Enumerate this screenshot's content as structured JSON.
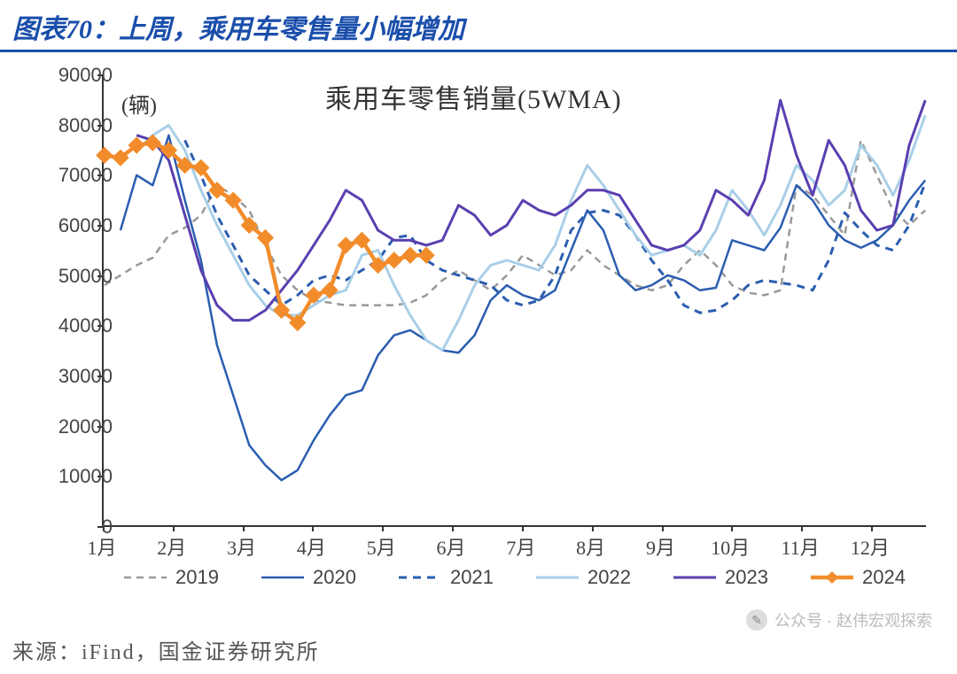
{
  "title": "图表70：上周，乘用车零售量小幅增加",
  "source": "来源：iFind，国金证券研究所",
  "watermark": "公众号 · 赵伟宏观探索",
  "chart": {
    "type": "line",
    "unit_label": "(辆)",
    "inner_title": "乘用车零售销量(5WMA)",
    "background_color": "#ffffff",
    "axis_color": "#333333",
    "ylim": [
      0,
      90000
    ],
    "ytick_step": 10000,
    "yticks": [
      0,
      10000,
      20000,
      30000,
      40000,
      50000,
      60000,
      70000,
      80000,
      90000
    ],
    "xlabels": [
      "1月",
      "2月",
      "3月",
      "4月",
      "5月",
      "6月",
      "7月",
      "8月",
      "9月",
      "10月",
      "11月",
      "12月"
    ],
    "points_per_month_labeling": 4,
    "label_fontsize": 22,
    "title_fontsize": 30,
    "title_color": "#1a4eab",
    "series": [
      {
        "name": "2019",
        "color": "#999999",
        "dash": "8,6",
        "width": 2.5,
        "marker": "none",
        "values": [
          48000,
          50000,
          52000,
          53500,
          58000,
          59500,
          62000,
          68000,
          66000,
          63000,
          56000,
          50000,
          47000,
          45000,
          44500,
          44000,
          44000,
          44000,
          44000,
          44500,
          46000,
          49000,
          51000,
          49000,
          47000,
          50000,
          54000,
          52000,
          50000,
          51000,
          55000,
          52000,
          50000,
          48000,
          47000,
          48000,
          52000,
          55000,
          52000,
          48000,
          46500,
          46000,
          47000,
          68000,
          66000,
          62000,
          58000,
          77000,
          70000,
          63000,
          60000,
          63000
        ]
      },
      {
        "name": "2020",
        "color": "#2b5db0",
        "dash": "none",
        "width": 2.5,
        "marker": "none",
        "values": [
          null,
          59000,
          70000,
          68000,
          78000,
          65000,
          53000,
          36000,
          26000,
          16000,
          12000,
          9000,
          11000,
          17000,
          22000,
          26000,
          27000,
          34000,
          38000,
          39000,
          37000,
          35000,
          34500,
          38000,
          45000,
          48000,
          46000,
          45000,
          47000,
          55000,
          63000,
          59000,
          50000,
          47000,
          48000,
          50000,
          49000,
          47000,
          47500,
          57000,
          56000,
          55000,
          59500,
          68000,
          65000,
          60000,
          57000,
          55500,
          57000,
          60000,
          65000,
          69000
        ]
      },
      {
        "name": "2021",
        "color": "#2b5db0",
        "dash": "9,7",
        "width": 3,
        "marker": "none",
        "values": [
          null,
          null,
          null,
          null,
          null,
          77000,
          70000,
          62000,
          56000,
          50000,
          47000,
          44000,
          46000,
          49000,
          50000,
          49000,
          51000,
          53000,
          57500,
          58000,
          53000,
          51000,
          50000,
          49000,
          48000,
          45000,
          44000,
          45000,
          50000,
          59000,
          62500,
          63000,
          62000,
          58000,
          53000,
          49000,
          44000,
          42500,
          43000,
          45000,
          48000,
          49000,
          48500,
          48000,
          47000,
          53000,
          62500,
          59000,
          56000,
          55000,
          60000,
          68500
        ]
      },
      {
        "name": "2022",
        "color": "#a9cfe8",
        "dash": "none",
        "width": 3,
        "marker": "none",
        "values": [
          null,
          null,
          75000,
          78000,
          80000,
          75000,
          67000,
          60000,
          54000,
          48000,
          44000,
          42000,
          42000,
          44000,
          46000,
          47000,
          54000,
          55000,
          48000,
          42000,
          37000,
          35000,
          41000,
          48000,
          52000,
          53000,
          52000,
          51000,
          56000,
          65000,
          72000,
          68000,
          63000,
          58000,
          54000,
          55000,
          56000,
          54000,
          59000,
          67000,
          63000,
          58000,
          64000,
          72000,
          69000,
          64000,
          67000,
          76000,
          72000,
          66000,
          73000,
          82000
        ]
      },
      {
        "name": "2023",
        "color": "#5a3fb0",
        "dash": "none",
        "width": 3,
        "marker": "none",
        "values": [
          null,
          null,
          78000,
          77000,
          73000,
          62000,
          51000,
          44000,
          41000,
          41000,
          43000,
          47000,
          51000,
          56000,
          61000,
          67000,
          65000,
          59000,
          57000,
          57000,
          56000,
          57000,
          64000,
          62000,
          58000,
          60000,
          65000,
          63000,
          62000,
          64000,
          67000,
          67000,
          66000,
          61000,
          56000,
          55000,
          56000,
          59000,
          67000,
          65000,
          62000,
          69000,
          85000,
          74000,
          66000,
          77000,
          72000,
          63000,
          59000,
          60000,
          76000,
          85000
        ]
      },
      {
        "name": "2024",
        "color": "#f28c2b",
        "dash": "none",
        "width": 4.5,
        "marker": "diamond",
        "marker_size": 9,
        "values": [
          74000,
          73500,
          76000,
          76500,
          75000,
          72000,
          71500,
          67000,
          65000,
          60000,
          57500,
          43000,
          40500,
          46000,
          47000,
          56000,
          57000,
          52000,
          53000,
          54000,
          54000
        ]
      }
    ],
    "legend": {
      "position": "bottom",
      "fontsize": 22,
      "items": [
        "2019",
        "2020",
        "2021",
        "2022",
        "2023",
        "2024"
      ]
    }
  }
}
